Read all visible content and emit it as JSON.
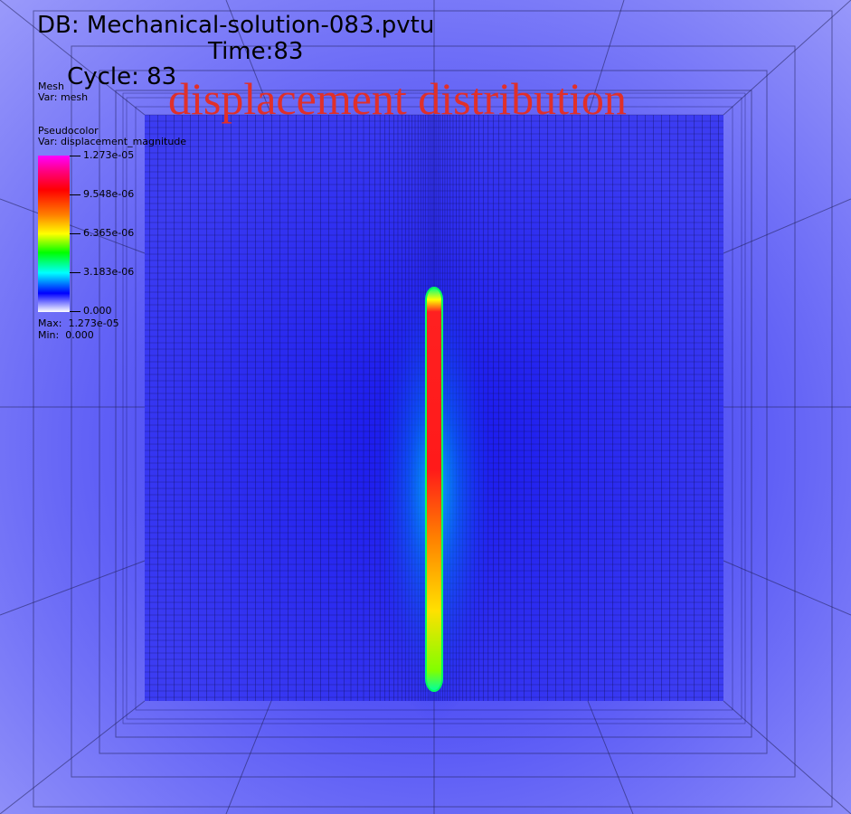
{
  "header": {
    "db_line": "DB: Mechanical-solution-083.pvtu",
    "cycle": "Cycle: 83",
    "time": "Time:83"
  },
  "mesh_legend": {
    "title": "Mesh",
    "var": "Var: mesh"
  },
  "pseudocolor_legend": {
    "title": "Pseudocolor",
    "var": "Var: displacement_magnitude",
    "tick_labels": [
      "1.273e-05",
      "9.548e-06",
      "6.365e-06",
      "3.183e-06",
      "0.000"
    ],
    "max": "Max:  1.273e-05",
    "min": "Min:  0.000"
  },
  "plot_title": "displacement distribution",
  "colors": {
    "background": "#8c8cf8",
    "field_blue": "#2a2af0",
    "title_red": "#e0302a",
    "mesh_line": "#1a1a60"
  }
}
